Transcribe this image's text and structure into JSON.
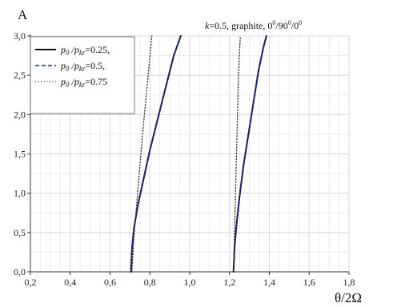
{
  "chart_data": {
    "type": "line",
    "ylabel": "A",
    "xlabel": "θ/2Ω",
    "annotation": "k=0.5, graphite, 0°/90°/0°",
    "xlim": [
      0.2,
      1.8
    ],
    "ylim": [
      0.0,
      3.0
    ],
    "x_ticks": [
      "0,2",
      "0,4",
      "0,6",
      "0,8",
      "1,0",
      "1,2",
      "1,4",
      "1,6",
      "1,8"
    ],
    "y_ticks": [
      "0,0",
      "0,5",
      "1,0",
      "1,5",
      "2,0",
      "2,5",
      "3,0"
    ],
    "grid": true,
    "legend_position": "top-left",
    "legend": [
      {
        "label": "p0/pkr=0.25,",
        "style": "solid",
        "color": "#111111"
      },
      {
        "label": "p0/pkr=0.5,",
        "style": "dashed",
        "color": "#1a2a8c"
      },
      {
        "label": "p0/pkr=0.75",
        "style": "dotted",
        "color": "#333333"
      }
    ],
    "series": [
      {
        "name": "p0/pkr=0.25",
        "style": "solid",
        "color": "#111111",
        "x": [
          0.705,
          0.71,
          0.72,
          0.74,
          0.77,
          0.8,
          0.84,
          0.88,
          0.92,
          0.955
        ],
        "y": [
          0.0,
          0.3,
          0.55,
          0.85,
          1.2,
          1.55,
          1.95,
          2.35,
          2.75,
          3.0
        ]
      },
      {
        "name": "p0/pkr=0.5",
        "style": "dashed",
        "color": "#1a2a8c",
        "x": [
          0.705,
          0.71,
          0.72,
          0.74,
          0.77,
          0.8,
          0.84,
          0.88,
          0.92,
          0.955
        ],
        "y": [
          0.0,
          0.3,
          0.55,
          0.85,
          1.2,
          1.55,
          1.95,
          2.35,
          2.75,
          3.0
        ]
      },
      {
        "name": "p0/pkr=0.75",
        "style": "dotted",
        "color": "#333333",
        "x": [
          0.71,
          0.72,
          0.735,
          0.75,
          0.765,
          0.78,
          0.795,
          0.81
        ],
        "y": [
          0.0,
          0.45,
          0.9,
          1.35,
          1.8,
          2.2,
          2.6,
          3.0
        ]
      },
      {
        "name": "p0/pkr=0.25",
        "style": "solid",
        "color": "#111111",
        "x": [
          1.22,
          1.225,
          1.235,
          1.25,
          1.27,
          1.295,
          1.32,
          1.345,
          1.37,
          1.385
        ],
        "y": [
          0.0,
          0.3,
          0.6,
          0.95,
          1.35,
          1.75,
          2.15,
          2.55,
          2.85,
          3.0
        ]
      },
      {
        "name": "p0/pkr=0.5",
        "style": "dashed",
        "color": "#1a2a8c",
        "x": [
          1.22,
          1.225,
          1.235,
          1.25,
          1.27,
          1.295,
          1.32,
          1.345,
          1.37,
          1.385
        ],
        "y": [
          0.0,
          0.3,
          0.6,
          0.95,
          1.35,
          1.75,
          2.15,
          2.55,
          2.85,
          3.0
        ]
      },
      {
        "name": "p0/pkr=0.75",
        "style": "dotted",
        "color": "#333333",
        "x": [
          1.22,
          1.225,
          1.23,
          1.235,
          1.24,
          1.245,
          1.25,
          1.255
        ],
        "y": [
          0.0,
          0.5,
          1.0,
          1.5,
          2.0,
          2.5,
          2.8,
          3.0
        ]
      }
    ]
  }
}
